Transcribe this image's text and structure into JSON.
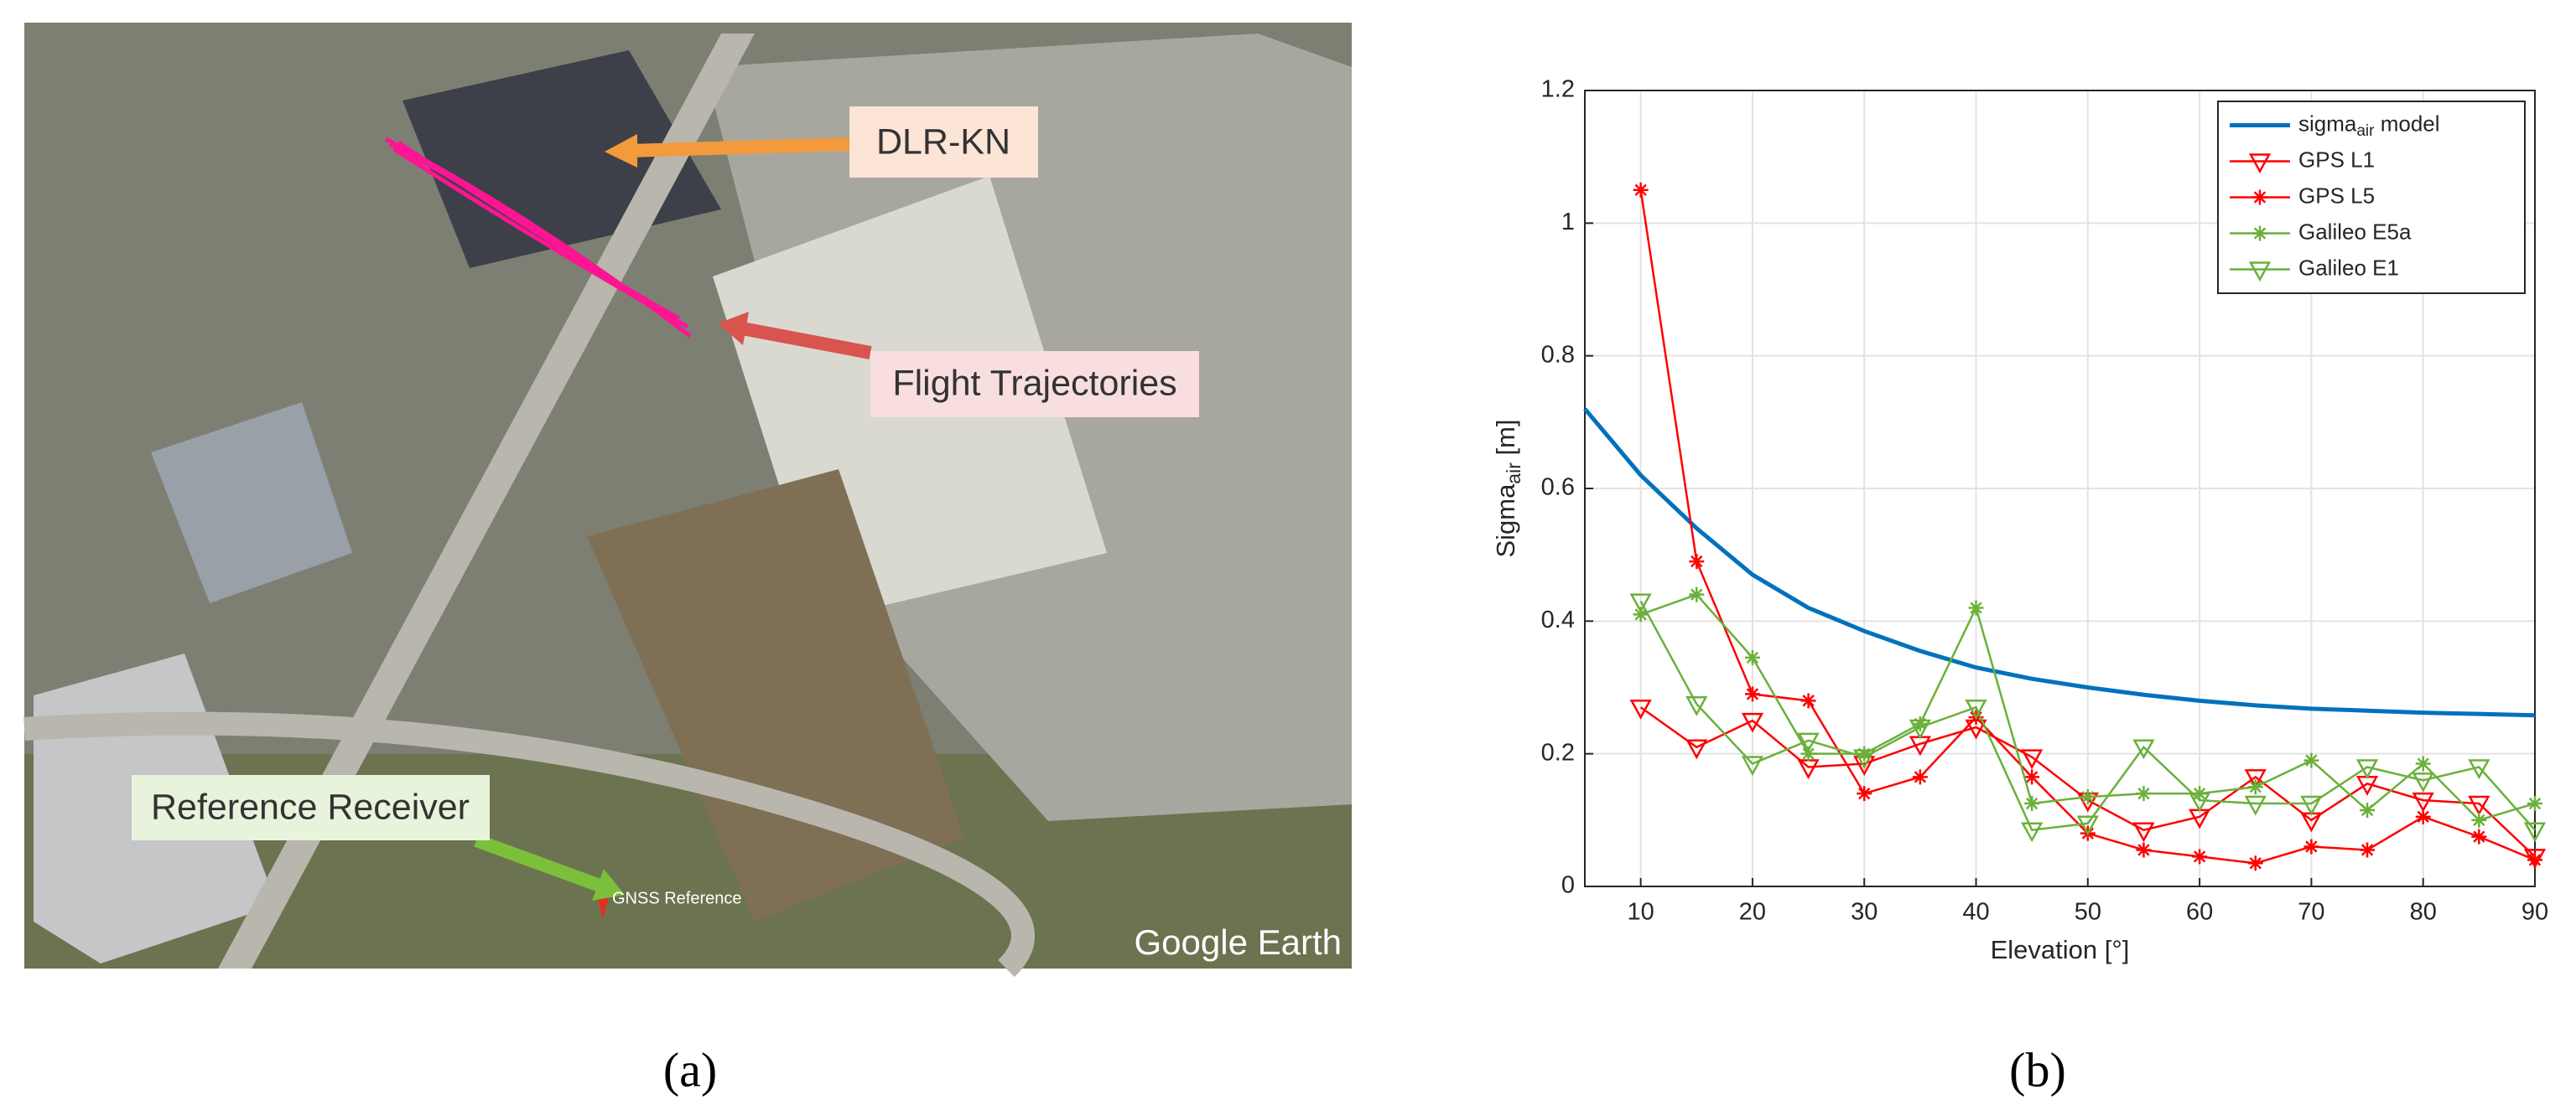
{
  "figure_a": {
    "labels": [
      "DLR-KN",
      "Flight Trajectories",
      "Reference Receiver"
    ],
    "map_label": "GNSS Reference",
    "watermark": "Google Earth",
    "caption": "(a)"
  },
  "chart_data": {
    "type": "line",
    "xlabel": "Elevation [°]",
    "ylabel": [
      "Sigma",
      "air",
      " [m]"
    ],
    "xlim": [
      5,
      90
    ],
    "ylim": [
      0,
      1.2
    ],
    "xticks": [
      10,
      20,
      30,
      40,
      50,
      60,
      70,
      80,
      90
    ],
    "yticks": [
      0,
      0.2,
      0.4,
      0.6,
      0.8,
      1,
      1.2
    ],
    "grid": true,
    "legend": "upper right",
    "series": [
      {
        "name": [
          "sigma",
          "air",
          " model"
        ],
        "color": "#0072bd",
        "marker": null,
        "x": [
          5,
          10,
          15,
          20,
          25,
          30,
          35,
          40,
          45,
          50,
          55,
          60,
          65,
          70,
          75,
          80,
          85,
          90
        ],
        "values": [
          0.72,
          0.62,
          0.54,
          0.47,
          0.42,
          0.385,
          0.355,
          0.33,
          0.313,
          0.3,
          0.289,
          0.28,
          0.273,
          0.268,
          0.265,
          0.262,
          0.26,
          0.258
        ]
      },
      {
        "name": "GPS L1",
        "color": "#ff0000",
        "marker": "triangle-down",
        "x": [
          10,
          15,
          20,
          25,
          30,
          35,
          40,
          45,
          50,
          55,
          60,
          65,
          70,
          75,
          80,
          85,
          90
        ],
        "values": [
          0.27,
          0.21,
          0.25,
          0.18,
          0.185,
          0.215,
          0.24,
          0.195,
          0.13,
          0.085,
          0.105,
          0.165,
          0.1,
          0.155,
          0.13,
          0.125,
          0.045
        ]
      },
      {
        "name": "GPS L5",
        "color": "#ff0000",
        "marker": "star",
        "x": [
          10,
          15,
          20,
          25,
          30,
          35,
          40,
          45,
          50,
          55,
          60,
          65,
          70,
          75,
          80,
          85,
          90
        ],
        "values": [
          1.05,
          0.49,
          0.29,
          0.28,
          0.14,
          0.165,
          0.255,
          0.165,
          0.08,
          0.055,
          0.045,
          0.035,
          0.06,
          0.055,
          0.105,
          0.075,
          0.04
        ]
      },
      {
        "name": "Galileo E5a",
        "color": "#6ab03a",
        "marker": "star",
        "x": [
          10,
          15,
          20,
          25,
          30,
          35,
          40,
          45,
          50,
          55,
          60,
          65,
          70,
          75,
          80,
          85,
          90
        ],
        "values": [
          0.41,
          0.44,
          0.345,
          0.2,
          0.2,
          0.245,
          0.42,
          0.125,
          0.135,
          0.14,
          0.14,
          0.15,
          0.19,
          0.115,
          0.185,
          0.1,
          0.125
        ]
      },
      {
        "name": "Galileo E1",
        "color": "#6ab03a",
        "marker": "triangle-down",
        "x": [
          10,
          15,
          20,
          25,
          30,
          35,
          40,
          45,
          50,
          55,
          60,
          65,
          70,
          75,
          80,
          85,
          90
        ],
        "values": [
          0.43,
          0.275,
          0.185,
          0.22,
          0.195,
          0.24,
          0.27,
          0.085,
          0.095,
          0.21,
          0.13,
          0.125,
          0.125,
          0.18,
          0.16,
          0.18,
          0.085
        ]
      }
    ]
  },
  "caption_b": "(b)"
}
